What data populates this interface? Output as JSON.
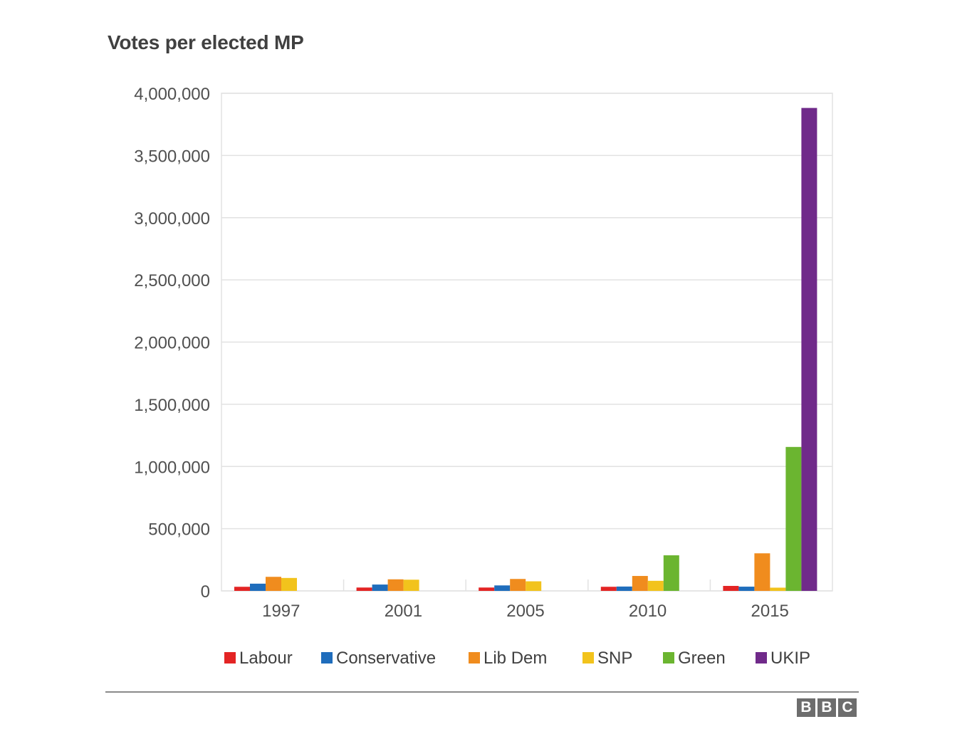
{
  "chart_data": {
    "type": "bar",
    "title": "Votes per elected MP",
    "categories": [
      "1997",
      "2001",
      "2005",
      "2010",
      "2015"
    ],
    "ylim": [
      0,
      4000000
    ],
    "yticks": [
      0,
      500000,
      1000000,
      1500000,
      2000000,
      2500000,
      3000000,
      3500000,
      4000000
    ],
    "ytick_labels": [
      "0",
      "500,000",
      "1,000,000",
      "1,500,000",
      "2,000,000",
      "2,500,000",
      "3,000,000",
      "3,500,000",
      "4,000,000"
    ],
    "grid": true,
    "legend_position": "bottom",
    "series": [
      {
        "name": "Labour",
        "color": "#e32424",
        "values": [
          33000,
          27000,
          27000,
          33000,
          40000
        ]
      },
      {
        "name": "Conservative",
        "color": "#1f6dbc",
        "values": [
          58000,
          51000,
          44000,
          35000,
          34000
        ]
      },
      {
        "name": "Lib Dem",
        "color": "#f08c1e",
        "values": [
          113000,
          93000,
          96000,
          120000,
          302000
        ]
      },
      {
        "name": "SNP",
        "color": "#f2c31c",
        "values": [
          104000,
          90000,
          77000,
          81000,
          26000
        ]
      },
      {
        "name": "Green",
        "color": "#6bb530",
        "values": [
          null,
          null,
          null,
          286000,
          1157000
        ]
      },
      {
        "name": "UKIP",
        "color": "#702a8a",
        "values": [
          null,
          null,
          null,
          null,
          3882000
        ]
      }
    ]
  },
  "logo": {
    "letters": [
      "B",
      "B",
      "C"
    ]
  }
}
